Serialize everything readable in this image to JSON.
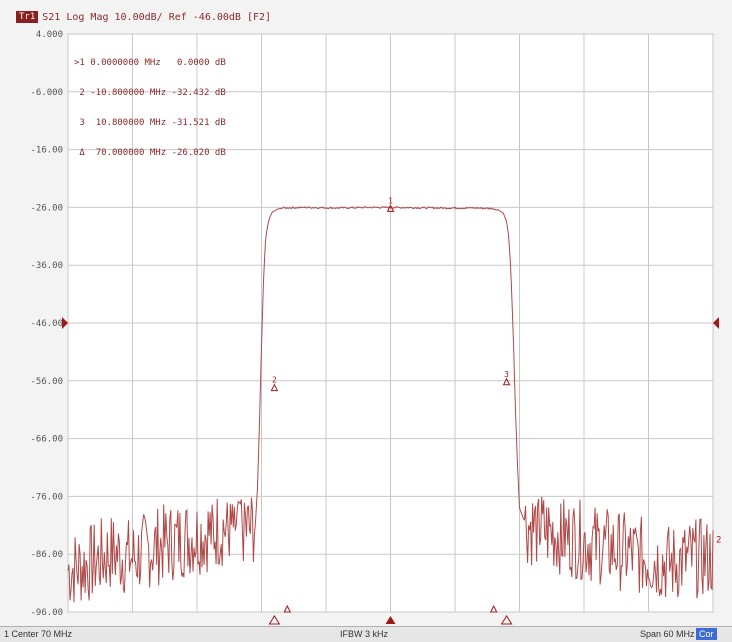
{
  "header": {
    "trace_tag": "Tr1",
    "title": "S21 Log Mag 10.00dB/ Ref -46.00dB [F2]"
  },
  "markers": [
    {
      "label": ">1",
      "freq": "0.0000000 MHz",
      "value": "0.0000 dB"
    },
    {
      "label": " 2",
      "freq": "-10.800000 MHz",
      "value": "-32.432 dB"
    },
    {
      "label": " 3",
      "freq": "10.800000 MHz",
      "value": "-31.521 dB"
    },
    {
      "label": " Δ",
      "freq": "70.000000 MHz",
      "value": "-26.020 dB"
    }
  ],
  "status": {
    "center": "1 Center 70 MHz",
    "ifbw": "IFBW 3 kHz",
    "span": "Span 60 MHz",
    "cor": "Cor"
  },
  "colors": {
    "trace": "#b04848",
    "grid": "#c8c8c8",
    "text": "#8a2a2a",
    "marker": "#a01818"
  },
  "chart_data": {
    "type": "line",
    "y_tick_labels": [
      "4.000",
      "-6.000",
      "-16.00",
      "-26.00",
      "-36.00",
      "-46.00",
      "-56.00",
      "-66.00",
      "-76.00",
      "-86.00",
      "-96.00"
    ],
    "ylim": [
      -96,
      4
    ],
    "xlim": [
      -30,
      30
    ],
    "reference_level": -46,
    "x_unit": "MHz",
    "series": [
      {
        "points": [
          [
            -30,
            -88
          ],
          [
            -28,
            -87
          ],
          [
            -26,
            -85
          ],
          [
            -24,
            -86
          ],
          [
            -22,
            -84
          ],
          [
            -20,
            -83
          ],
          [
            -18,
            -82
          ],
          [
            -16,
            -81
          ],
          [
            -14.5,
            -80
          ],
          [
            -13,
            -81
          ],
          [
            -12.6,
            -80
          ],
          [
            -12.4,
            -76
          ],
          [
            -12.2,
            -64
          ],
          [
            -12.0,
            -50
          ],
          [
            -11.8,
            -38
          ],
          [
            -11.6,
            -31
          ],
          [
            -11.3,
            -28
          ],
          [
            -11,
            -26.8
          ],
          [
            -10.5,
            -26.3
          ],
          [
            -10,
            -26.1
          ],
          [
            -8,
            -26.0
          ],
          [
            -5,
            -26.1
          ],
          [
            -2,
            -26.0
          ],
          [
            0,
            -26.0
          ],
          [
            2,
            -26.05
          ],
          [
            5,
            -26.1
          ],
          [
            8,
            -26.1
          ],
          [
            9.5,
            -26.2
          ],
          [
            10,
            -26.4
          ],
          [
            10.5,
            -27
          ],
          [
            10.8,
            -28.5
          ],
          [
            11.0,
            -31
          ],
          [
            11.2,
            -37
          ],
          [
            11.4,
            -47
          ],
          [
            11.6,
            -60
          ],
          [
            11.8,
            -70
          ],
          [
            12.0,
            -78
          ],
          [
            12.4,
            -80
          ],
          [
            14,
            -81
          ],
          [
            16,
            -82
          ],
          [
            18,
            -83
          ],
          [
            20,
            -84
          ],
          [
            22,
            -85
          ],
          [
            24,
            -86
          ],
          [
            26,
            -87
          ],
          [
            28,
            -86
          ],
          [
            30,
            -86
          ]
        ],
        "noise_floor_range_db": [
          -96,
          -78
        ]
      }
    ],
    "marker_points": [
      {
        "label": "1",
        "x": 0,
        "y": -26.0
      },
      {
        "label": "2",
        "x": -10.8,
        "y": -57
      },
      {
        "label": "3",
        "x": 10.8,
        "y": -56
      }
    ],
    "reference_arrow_y": -46,
    "grid": true
  }
}
